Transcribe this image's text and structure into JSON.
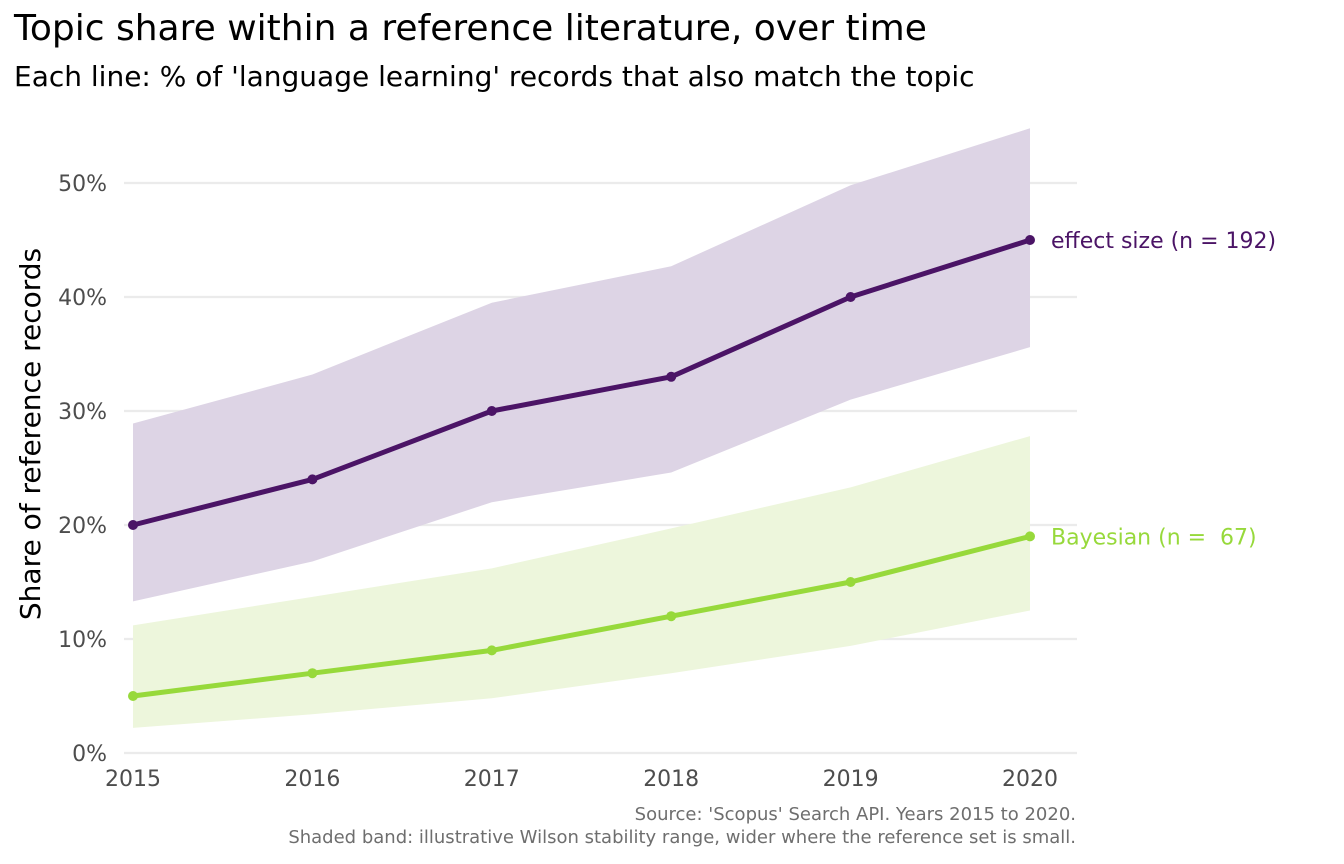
{
  "title": "Topic share within a reference literature, over time",
  "subtitle": "Each line: % of 'language learning' records that also match the topic",
  "caption": [
    "Source: 'Scopus' Search API. Years 2015 to 2020.",
    "Shaded band: illustrative Wilson stability range, wider where the reference set is small."
  ],
  "chart_data": {
    "type": "line",
    "title": "Topic share within a reference literature, over time",
    "subtitle": "Each line: % of 'language learning' records that also match the topic",
    "xlabel": "",
    "ylabel": "Share of reference records",
    "x": [
      2015,
      2016,
      2017,
      2018,
      2019,
      2020
    ],
    "x_tick_labels": [
      "2015",
      "2016",
      "2017",
      "2018",
      "2019",
      "2020"
    ],
    "y_ticks": [
      0,
      10,
      20,
      30,
      40,
      50
    ],
    "y_tick_labels": [
      "0%",
      "10%",
      "20%",
      "30%",
      "40%",
      "50%"
    ],
    "ylim": [
      0,
      55
    ],
    "grid": "horizontal",
    "legend": "direct labels at right end of lines",
    "series": [
      {
        "name": "effect size",
        "label": "effect size (n = 192)",
        "color": "#4b1466",
        "band_color": "#ddd4e5",
        "values": [
          20,
          24,
          30,
          33,
          40,
          45
        ],
        "band_lower": [
          13.3,
          16.8,
          22.0,
          24.6,
          31.0,
          35.6
        ],
        "band_upper": [
          28.9,
          33.2,
          39.5,
          42.7,
          49.8,
          54.8
        ]
      },
      {
        "name": "Bayesian",
        "label": "Bayesian (n =  67)",
        "color": "#97d93b",
        "band_color": "#edf6dc",
        "values": [
          5,
          7,
          9,
          12,
          15,
          19
        ],
        "band_lower": [
          2.2,
          3.4,
          4.8,
          7.0,
          9.4,
          12.5
        ],
        "band_upper": [
          11.2,
          13.7,
          16.2,
          19.7,
          23.3,
          27.8
        ]
      }
    ]
  }
}
